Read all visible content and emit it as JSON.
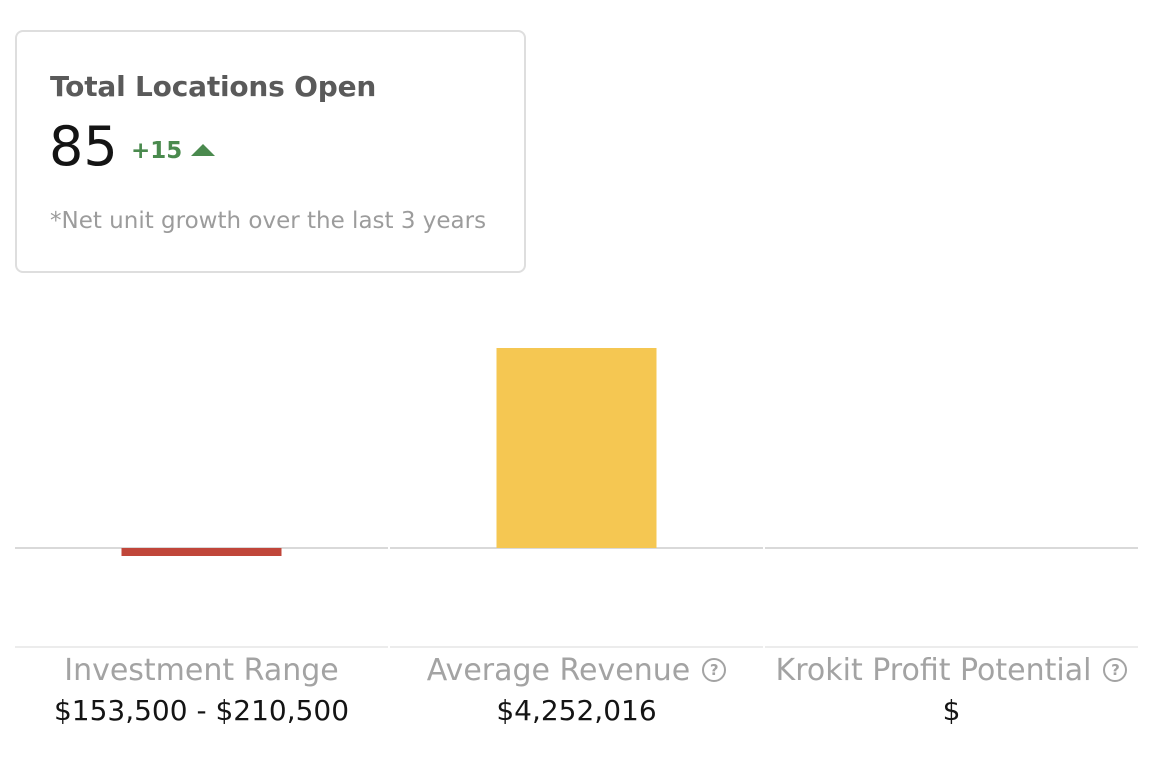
{
  "card": {
    "title": "Total Locations Open",
    "value": "85",
    "delta": "+15",
    "delta_icon": "arrow-up-icon",
    "note": "*Net unit growth over the last 3 years"
  },
  "metrics": [
    {
      "label": "Investment Range",
      "value": "$153,500 - $210,500",
      "has_help": false
    },
    {
      "label": "Average Revenue",
      "value": "$4,252,016",
      "has_help": true
    },
    {
      "label": "Krokit Profit Potential",
      "value": "$",
      "has_help": true
    }
  ],
  "help_icon_glyph": "?",
  "colors": {
    "positive": "#4a8a4e",
    "investment_bar": "#c0463a",
    "revenue_bar": "#f5c752",
    "profit_bar": "#7fb77e",
    "baseline": "#d9d9d9"
  },
  "chart_data": {
    "type": "bar",
    "categories": [
      "Investment Range",
      "Average Revenue",
      "Krokit Profit Potential"
    ],
    "values": [
      -210500,
      4252016,
      0
    ]
  }
}
